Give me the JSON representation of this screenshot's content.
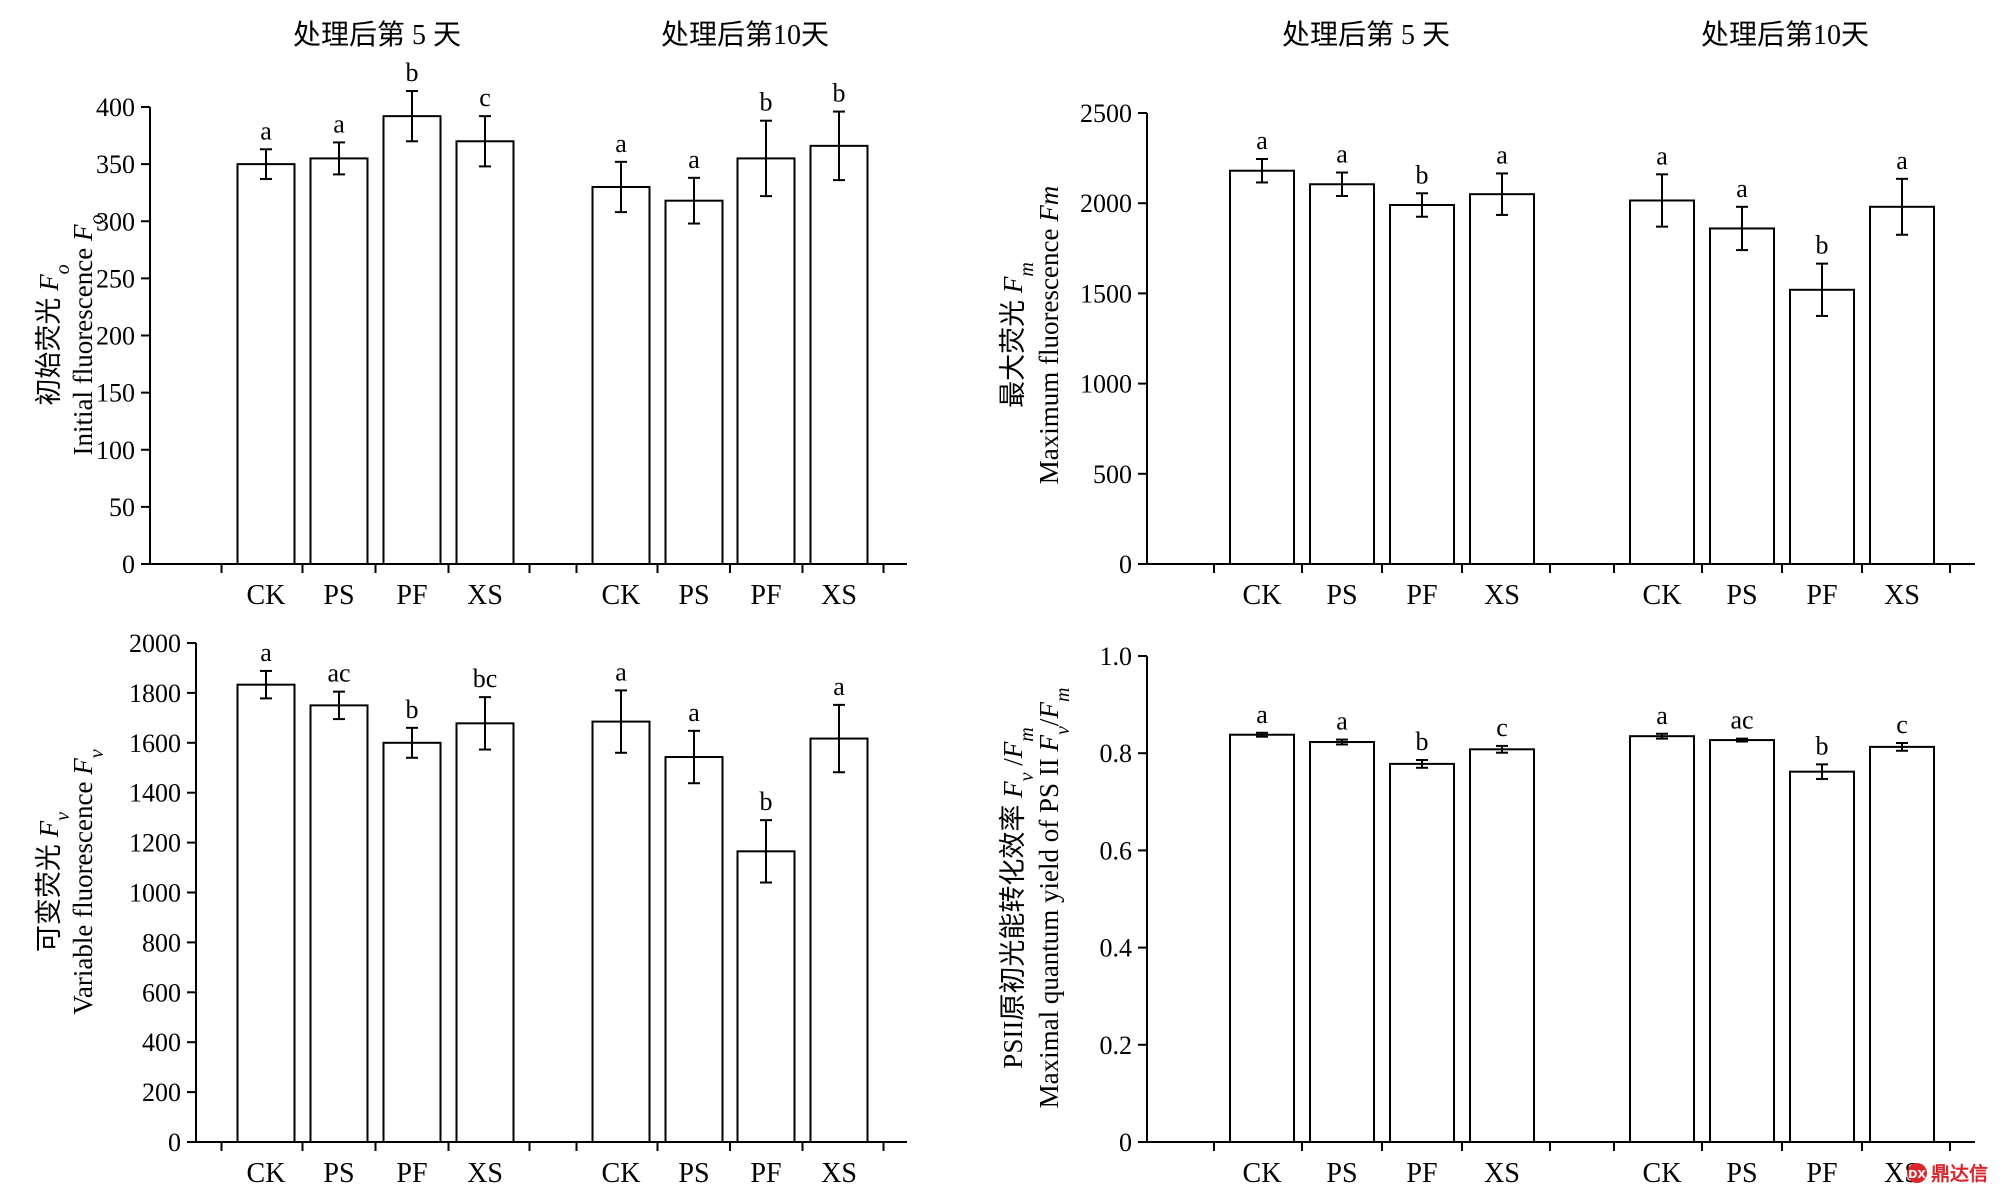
{
  "header_labels": [
    "处理后第 5 天",
    "处理后第10天"
  ],
  "watermark": "鼎达信",
  "chart_data": [
    {
      "type": "bar",
      "groups": [
        "处理后第 5 天",
        "处理后第10天"
      ],
      "categories": [
        "CK",
        "PS",
        "PF",
        "XS"
      ],
      "ylabel_cn": "初始荧光",
      "ylabel_cn_symbol": "F",
      "ylabel_cn_sub": "o",
      "ylabel_en": "Initial fluorescence",
      "ylabel_en_symbol": "F",
      "ylabel_en_sub": "o",
      "ylim": [
        0,
        400
      ],
      "yticks": [
        0,
        50,
        100,
        150,
        200,
        250,
        300,
        350,
        400
      ],
      "ytick_labels": [
        "0",
        "50",
        "100",
        "150",
        "200",
        "250",
        "300",
        "350",
        "400"
      ],
      "values": [
        [
          350,
          355,
          392,
          370
        ],
        [
          330,
          318,
          355,
          366
        ]
      ],
      "errors": [
        [
          13,
          14,
          22,
          22
        ],
        [
          22,
          20,
          33,
          30
        ]
      ],
      "letters": [
        [
          "a",
          "a",
          "b",
          "c"
        ],
        [
          "a",
          "a",
          "b",
          "b"
        ]
      ]
    },
    {
      "type": "bar",
      "groups": [
        "处理后第 5 天",
        "处理后第10天"
      ],
      "categories": [
        "CK",
        "PS",
        "PF",
        "XS"
      ],
      "ylabel_cn": "最大荧光",
      "ylabel_cn_symbol": "F",
      "ylabel_cn_sub": "m",
      "ylabel_en": "Maximum fluorescence",
      "ylabel_en_symbol": "Fm",
      "ylabel_en_sub": "",
      "ylim": [
        0,
        2500
      ],
      "yticks": [
        0,
        500,
        1000,
        1500,
        2000,
        2500
      ],
      "ytick_labels": [
        "0",
        "500",
        "1000",
        "1500",
        "2000",
        "2500"
      ],
      "values": [
        [
          2180,
          2105,
          1990,
          2050
        ],
        [
          2015,
          1860,
          1520,
          1980
        ]
      ],
      "errors": [
        [
          65,
          65,
          65,
          115
        ],
        [
          145,
          120,
          145,
          155
        ]
      ],
      "letters": [
        [
          "a",
          "a",
          "b",
          "a"
        ],
        [
          "a",
          "a",
          "b",
          "a"
        ]
      ]
    },
    {
      "type": "bar",
      "groups": [
        "处理后第 5 天",
        "处理后第10天"
      ],
      "categories": [
        "CK",
        "PS",
        "PF",
        "XS"
      ],
      "ylabel_cn": "可变荧光",
      "ylabel_cn_symbol": "F",
      "ylabel_cn_sub": "v",
      "ylabel_en": "Variable fluorescence",
      "ylabel_en_symbol": "F",
      "ylabel_en_sub": "v",
      "ylim": [
        0,
        2000
      ],
      "yticks": [
        0,
        200,
        400,
        600,
        800,
        1000,
        1200,
        1400,
        1600,
        1800,
        2000
      ],
      "ytick_labels": [
        "0",
        "200",
        "400",
        "600",
        "800",
        "1000",
        "1200",
        "1400",
        "1600",
        "1800",
        "2000"
      ],
      "values": [
        [
          1833,
          1750,
          1600,
          1678
        ],
        [
          1685,
          1543,
          1165,
          1617
        ]
      ],
      "errors": [
        [
          55,
          55,
          60,
          105
        ],
        [
          125,
          105,
          125,
          135
        ]
      ],
      "letters": [
        [
          "a",
          "ac",
          "b",
          "bc"
        ],
        [
          "a",
          "a",
          "b",
          "a"
        ]
      ]
    },
    {
      "type": "bar",
      "groups": [
        "处理后第 5 天",
        "处理后第10天"
      ],
      "categories": [
        "CK",
        "PS",
        "PF",
        "XS"
      ],
      "ylabel_cn": "PSII原初光能转化效率",
      "ylabel_cn_symbol": "F",
      "ylabel_cn_sub": "v",
      "ylabel_cn_symbol2": "F",
      "ylabel_cn_sub2": "m",
      "ylabel_en": "Maximal quantum yield of PS II",
      "ylabel_en_symbol": "F",
      "ylabel_en_sub": "v",
      "ylabel_en_symbol2": "F",
      "ylabel_en_sub2": "m",
      "ylim": [
        0,
        1.0
      ],
      "yticks": [
        0,
        0.2,
        0.4,
        0.6,
        0.8,
        1.0
      ],
      "ytick_labels": [
        "0",
        "0.2",
        "0.4",
        "0.6",
        "0.8",
        "1.0"
      ],
      "values": [
        [
          0.838,
          0.823,
          0.778,
          0.808
        ],
        [
          0.835,
          0.827,
          0.762,
          0.813
        ]
      ],
      "errors": [
        [
          0.004,
          0.005,
          0.008,
          0.007
        ],
        [
          0.005,
          0.003,
          0.015,
          0.008
        ]
      ],
      "letters": [
        [
          "a",
          "a",
          "b",
          "c"
        ],
        [
          "a",
          "ac",
          "b",
          "c"
        ]
      ]
    }
  ]
}
